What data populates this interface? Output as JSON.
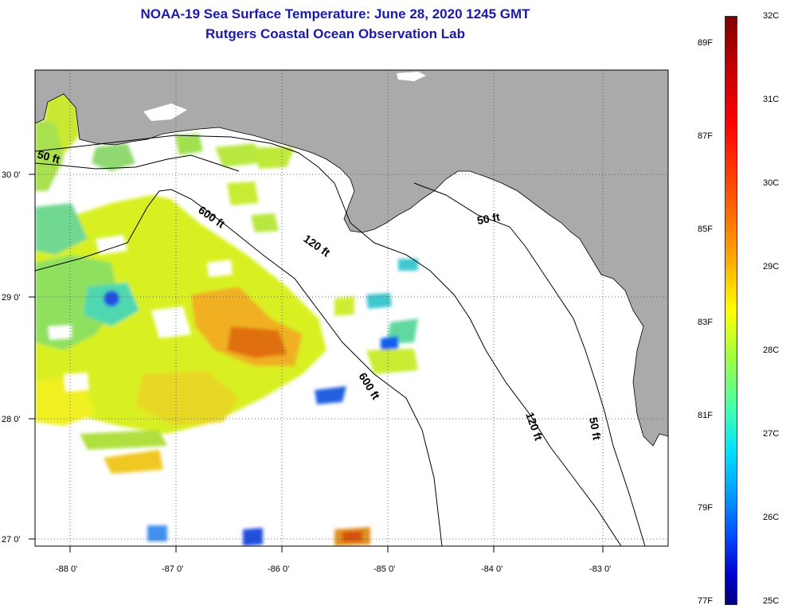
{
  "title": {
    "line1": "NOAA-19 Sea Surface Temperature:  June 28, 2020 1245 GMT",
    "line2": "Rutgers Coastal Ocean Observation Lab"
  },
  "map": {
    "lat_labels": [
      "30 0'",
      "29 0'",
      "28 0'",
      "27 0'"
    ],
    "lon_labels": [
      "-88 0'",
      "-87 0'",
      "-86 0'",
      "-85 0'",
      "-84 0'",
      "-83 0'"
    ],
    "contour_labels": [
      "50 ft",
      "600 ft",
      "120 ft",
      "50 ft",
      "600 ft",
      "120 ft",
      "50 ft"
    ]
  },
  "colorbar": {
    "celsius_labels": [
      "32C",
      "31C",
      "30C",
      "29C",
      "28C",
      "27C",
      "26C",
      "25C"
    ],
    "fahrenheit_labels": [
      "89F",
      "87F",
      "85F",
      "83F",
      "81F",
      "79F",
      "77F"
    ]
  },
  "colors": {
    "land": "#aaaaaa",
    "title": "#1a1aa8"
  }
}
